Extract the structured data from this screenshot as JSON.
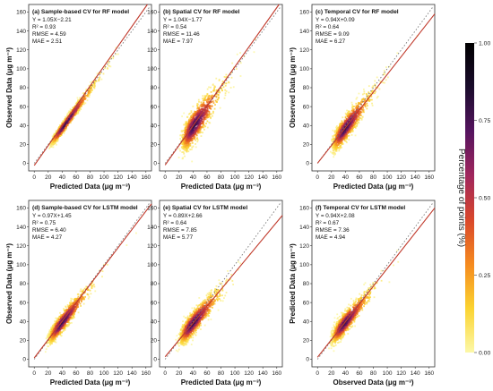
{
  "colorbar": {
    "label": "Percentage of points (%)",
    "ticks": [
      "0.00",
      "0.25",
      "0.50",
      "0.75",
      "1.00"
    ],
    "colors": [
      "#fcf8a8",
      "#fbd330",
      "#f58a1f",
      "#d9472b",
      "#a0265d",
      "#55145f",
      "#1a0c2c",
      "#000000"
    ]
  },
  "axes": {
    "ticks": [
      0,
      20,
      40,
      60,
      80,
      100,
      120,
      140,
      160
    ],
    "xlim": [
      -8,
      168
    ],
    "ylim": [
      -8,
      168
    ]
  },
  "chart_data": [
    {
      "type": "scatter",
      "title": "(a) Sample-based CV for RF model",
      "stats": [
        "Y = 1.05X−2.21",
        "R² = 0.93",
        "RMSE = 4.59",
        "MAE = 2.51"
      ],
      "xlabel": "Predicted Data (μg m⁻³)",
      "ylabel": "Observed Data (μg m⁻³)",
      "fit": {
        "slope": 1.05,
        "intercept": -2.21
      },
      "center": [
        45,
        42
      ],
      "spread": [
        18,
        19
      ],
      "corr": 0.96
    },
    {
      "type": "scatter",
      "title": "(b) Spatial CV for RF model",
      "stats": [
        "Y = 1.04X−1.77",
        "R² = 0.54",
        "RMSE = 11.46",
        "MAE = 7.97"
      ],
      "xlabel": "Predicted Data (μg m⁻³)",
      "ylabel": "",
      "fit": {
        "slope": 1.04,
        "intercept": -1.77
      },
      "center": [
        42,
        40
      ],
      "spread": [
        16,
        22
      ],
      "corr": 0.72
    },
    {
      "type": "scatter",
      "title": "(c) Temporal CV for RF model",
      "stats": [
        "Y = 0.94X+0.09",
        "R² = 0.64",
        "RMSE = 9.09",
        "MAE = 6.27"
      ],
      "xlabel": "Predicted Data (μg m⁻³)",
      "ylabel": "Observed Data (μg m⁻³)",
      "fit": {
        "slope": 0.94,
        "intercept": 0.09
      },
      "center": [
        40,
        37
      ],
      "spread": [
        16,
        19
      ],
      "corr": 0.8
    },
    {
      "type": "scatter",
      "title": "(d) Sample-based CV for LSTM model",
      "stats": [
        "Y = 0.97X+1.45",
        "R² = 0.75",
        "RMSE = 6.40",
        "MAE = 4.27"
      ],
      "xlabel": "Predicted Data (μg m⁻³)",
      "ylabel": "Observed Data (μg m⁻³)",
      "fit": {
        "slope": 0.97,
        "intercept": 1.45
      },
      "center": [
        40,
        39
      ],
      "spread": [
        17,
        18
      ],
      "corr": 0.87
    },
    {
      "type": "scatter",
      "title": "(e) Spatial CV for LSTM model",
      "stats": [
        "Y = 0.89X+2.66",
        "R² = 0.64",
        "RMSE = 7.85",
        "MAE = 5.77"
      ],
      "xlabel": "Predicted Data (μg m⁻³)",
      "ylabel": "",
      "fit": {
        "slope": 0.89,
        "intercept": 2.66
      },
      "center": [
        40,
        38
      ],
      "spread": [
        17,
        18
      ],
      "corr": 0.8
    },
    {
      "type": "scatter",
      "title": "(f) Temporal CV for LSTM model",
      "stats": [
        "Y = 0.94X+2.08",
        "R² = 0.67",
        "RMSE = 7.36",
        "MAE = 4.94"
      ],
      "xlabel": "Observed Data (μg m⁻³)",
      "ylabel": "Predicted Data (μg m⁻³)",
      "fit": {
        "slope": 0.94,
        "intercept": 2.08
      },
      "center": [
        39,
        38
      ],
      "spread": [
        16,
        17
      ],
      "corr": 0.82
    }
  ]
}
